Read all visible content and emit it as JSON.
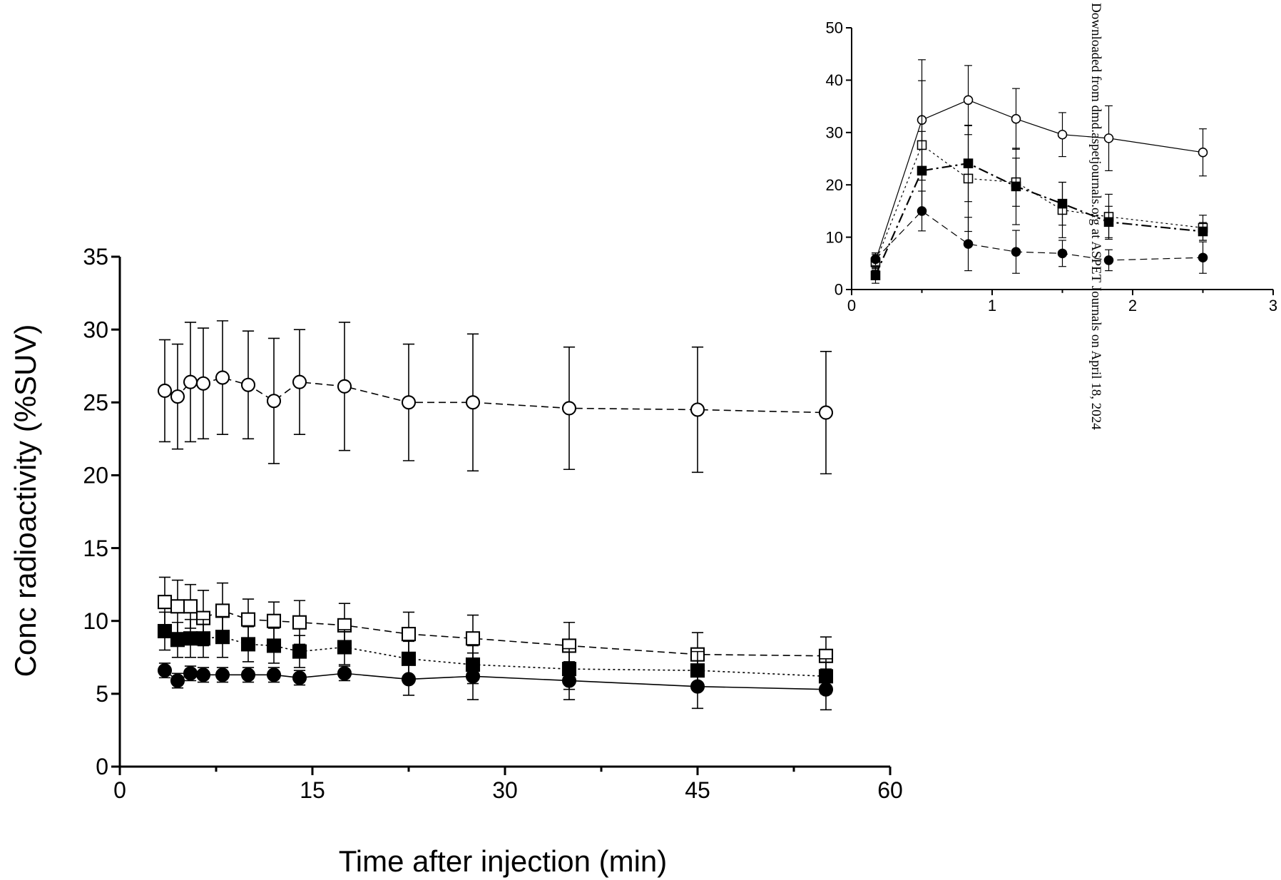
{
  "chart_data": [
    {
      "type": "line",
      "title": "",
      "xlabel": "Time after injection (min)",
      "ylabel": "Conc radioactivity (%SUV)",
      "xlim": [
        0,
        60
      ],
      "ylim": [
        0,
        35
      ],
      "xticks": [
        "0",
        "15",
        "30",
        "45",
        "60"
      ],
      "yticks": [
        "0",
        "5",
        "10",
        "15",
        "20",
        "25",
        "30",
        "35"
      ],
      "series": [
        {
          "marker": "open-circle",
          "line": "dashed",
          "x": [
            3.5,
            4.5,
            5.5,
            6.5,
            8,
            10,
            12,
            14,
            17.5,
            22.5,
            27.5,
            35,
            45,
            55
          ],
          "y": [
            25.8,
            25.4,
            26.4,
            26.3,
            26.7,
            26.2,
            25.1,
            26.4,
            26.1,
            25.0,
            25.0,
            24.6,
            24.5,
            24.3
          ],
          "err": [
            3.5,
            3.6,
            4.1,
            3.8,
            3.9,
            3.7,
            4.3,
            3.6,
            4.4,
            4.0,
            4.7,
            4.2,
            4.3,
            4.2
          ]
        },
        {
          "marker": "open-square",
          "line": "dashed",
          "x": [
            3.5,
            4.5,
            5.5,
            6.5,
            8,
            10,
            12,
            14,
            17.5,
            22.5,
            27.5,
            35,
            45,
            55
          ],
          "y": [
            11.3,
            11.0,
            11.0,
            10.2,
            10.7,
            10.1,
            10.0,
            9.9,
            9.7,
            9.1,
            8.8,
            8.3,
            7.7,
            7.6
          ],
          "err": [
            1.7,
            1.8,
            1.5,
            1.9,
            1.9,
            1.4,
            1.3,
            1.5,
            1.5,
            1.5,
            1.6,
            1.6,
            1.5,
            1.3
          ]
        },
        {
          "marker": "filled-square",
          "line": "dotted",
          "x": [
            3.5,
            4.5,
            5.5,
            6.5,
            8,
            10,
            12,
            14,
            17.5,
            22.5,
            27.5,
            35,
            45,
            55
          ],
          "y": [
            9.3,
            8.7,
            8.8,
            8.8,
            8.9,
            8.4,
            8.3,
            7.9,
            8.2,
            7.4,
            7.0,
            6.7,
            6.6,
            6.2
          ],
          "err": [
            1.3,
            1.2,
            1.3,
            1.3,
            1.4,
            1.2,
            1.2,
            1.1,
            1.2,
            1.2,
            1.3,
            1.4,
            1.3,
            1.2
          ]
        },
        {
          "marker": "filled-circle",
          "line": "solid",
          "x": [
            3.5,
            4.5,
            5.5,
            6.5,
            8,
            10,
            12,
            14,
            17.5,
            22.5,
            27.5,
            35,
            45,
            55
          ],
          "y": [
            6.6,
            5.9,
            6.4,
            6.3,
            6.3,
            6.3,
            6.3,
            6.1,
            6.4,
            6.0,
            6.2,
            5.9,
            5.5,
            5.3
          ],
          "err": [
            0.5,
            0.5,
            0.5,
            0.5,
            0.5,
            0.5,
            0.5,
            0.5,
            0.5,
            1.1,
            1.6,
            1.3,
            1.5,
            1.4
          ]
        }
      ]
    },
    {
      "type": "line",
      "title": "",
      "xlabel": "",
      "ylabel": "",
      "xlim": [
        0,
        3
      ],
      "ylim": [
        0,
        50
      ],
      "xticks": [
        "0",
        "1",
        "2",
        "3"
      ],
      "yticks": [
        "0",
        "10",
        "20",
        "30",
        "40",
        "50"
      ],
      "series": [
        {
          "marker": "open-circle",
          "line": "solid",
          "x": [
            0.17,
            0.5,
            0.83,
            1.17,
            1.5,
            1.83,
            2.5
          ],
          "y": [
            5.5,
            32.4,
            36.2,
            32.6,
            29.6,
            28.9,
            26.2
          ],
          "err": [
            1.5,
            11.5,
            6.6,
            5.8,
            4.2,
            6.2,
            4.5
          ]
        },
        {
          "marker": "open-square",
          "line": "dotted",
          "x": [
            0.17,
            0.5,
            0.83,
            1.17,
            1.5,
            1.83,
            2.5
          ],
          "y": [
            5.2,
            27.6,
            21.2,
            20.5,
            15.2,
            13.9,
            11.8
          ],
          "err": [
            1.5,
            12.3,
            10.1,
            4.6,
            5.3,
            4.3,
            2.4
          ]
        },
        {
          "marker": "filled-square",
          "line": "dash-dot",
          "x": [
            0.17,
            0.5,
            0.83,
            1.17,
            1.5,
            1.83,
            2.5
          ],
          "y": [
            2.7,
            22.7,
            24.1,
            19.7,
            16.4,
            12.9,
            11.1
          ],
          "err": [
            1.5,
            7.5,
            7.3,
            7.3,
            4.1,
            3.0,
            1.7
          ]
        },
        {
          "marker": "filled-circle",
          "line": "dashed",
          "x": [
            0.17,
            0.5,
            0.83,
            1.17,
            1.5,
            1.83,
            2.5
          ],
          "y": [
            5.8,
            15.0,
            8.7,
            7.2,
            6.9,
            5.6,
            6.1
          ],
          "err": [
            1.2,
            3.8,
            5.1,
            4.1,
            2.5,
            2.0,
            3.0
          ]
        }
      ]
    }
  ],
  "watermark": "Downloaded from dmd.aspetjournals.org at ASPET Journals on April 18, 2024"
}
